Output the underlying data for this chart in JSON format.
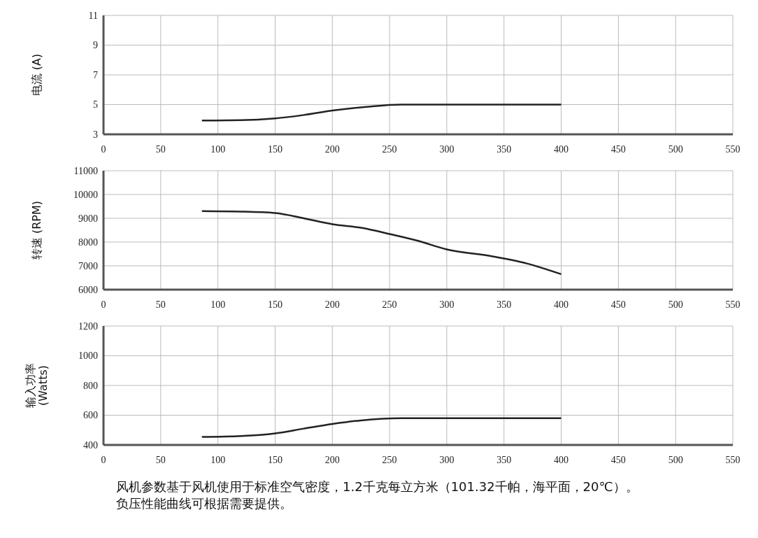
{
  "chart_data": [
    {
      "type": "line",
      "ylabel": "电流 (A)",
      "x": [
        86,
        120,
        150,
        175,
        200,
        230,
        260,
        300,
        350,
        400
      ],
      "series": [
        {
          "color": "#222222",
          "values": [
            3.93,
            3.95,
            4.07,
            4.3,
            4.6,
            4.85,
            5.0,
            5.0,
            5.0,
            5.0
          ]
        }
      ],
      "xlim": [
        0,
        550
      ],
      "xticks": [
        0,
        50,
        100,
        150,
        200,
        250,
        300,
        350,
        400,
        450,
        500,
        550
      ],
      "ylim": [
        3,
        11
      ],
      "yticks": [
        3,
        5,
        7,
        9,
        11
      ],
      "grid": true
    },
    {
      "type": "line",
      "ylabel": "转速 (RPM)",
      "x": [
        86,
        120,
        150,
        175,
        200,
        225,
        250,
        275,
        300,
        340,
        370,
        400
      ],
      "series": [
        {
          "color": "#222222",
          "values": [
            9300,
            9280,
            9220,
            9000,
            8750,
            8600,
            8340,
            8050,
            7690,
            7400,
            7100,
            6650
          ]
        }
      ],
      "xlim": [
        0,
        550
      ],
      "xticks": [
        0,
        50,
        100,
        150,
        200,
        250,
        300,
        350,
        400,
        450,
        500,
        550
      ],
      "ylim": [
        6000,
        11000
      ],
      "yticks": [
        6000,
        7000,
        8000,
        9000,
        10000,
        11000
      ],
      "grid": true
    },
    {
      "type": "line",
      "ylabel": "输入功率\n(Watts)",
      "x": [
        86,
        120,
        150,
        175,
        200,
        225,
        260,
        300,
        350,
        400
      ],
      "series": [
        {
          "color": "#222222",
          "values": [
            454,
            460,
            478,
            510,
            541,
            565,
            580,
            580,
            580,
            580
          ]
        }
      ],
      "xlim": [
        0,
        550
      ],
      "xticks": [
        0,
        50,
        100,
        150,
        200,
        250,
        300,
        350,
        400,
        450,
        500,
        550
      ],
      "ylim": [
        400,
        1200
      ],
      "yticks": [
        400,
        600,
        800,
        1000,
        1200
      ],
      "grid": true,
      "annotations": [
        "风机参数基于风机使用于标准空气密度，1.2千克每立方米（101.32千帕，海平面，20℃）。",
        "负压性能曲线可根据需要提供。"
      ]
    }
  ]
}
